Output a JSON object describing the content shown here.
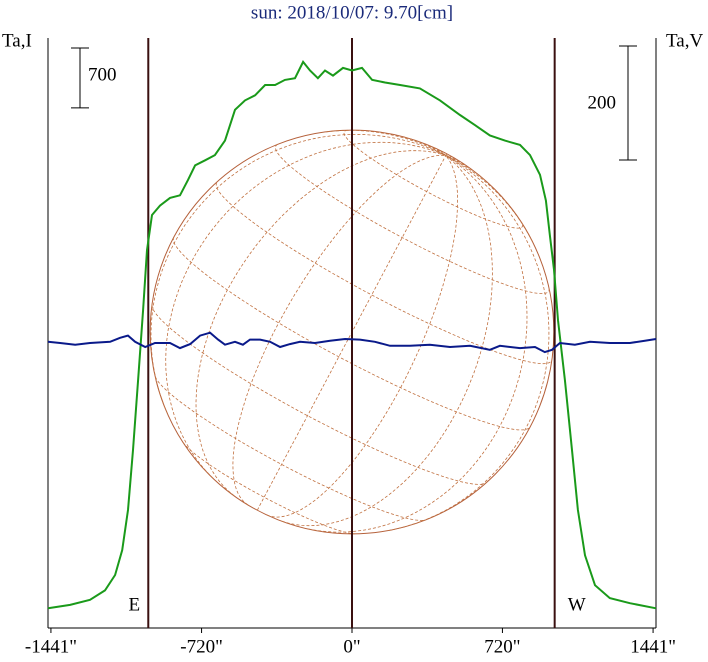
{
  "chart_data": {
    "type": "line",
    "title": "sun: 2018/10/07: 9.70[cm]",
    "ylabel": "Ta,I",
    "y2label": "Ta,V",
    "xlim": [
      -1455,
      1455
    ],
    "xticks": [
      {
        "value": -1441,
        "label": "-1441\""
      },
      {
        "value": -720,
        "label": "-720\""
      },
      {
        "value": 0,
        "label": "0\""
      },
      {
        "value": 720,
        "label": "720\""
      },
      {
        "value": 1441,
        "label": "1441\""
      }
    ],
    "ylim": [
      0,
      6900
    ],
    "y2lim": [
      -502,
      533
    ],
    "disk_radius": 966,
    "vlines": [
      {
        "x": -975,
        "label": "E"
      },
      {
        "x": 0
      },
      {
        "x": 970,
        "label": "W"
      }
    ],
    "scale_bars": [
      {
        "value": 700
      },
      {
        "value": 200,
        "axis": "y2"
      }
    ],
    "series": [
      {
        "name": "I",
        "color": "#1a9a1a",
        "x": [
          -1455,
          -1349,
          -1254,
          -1182,
          -1134,
          -1100,
          -1072,
          -1048,
          -1024,
          -1000,
          -981,
          -957,
          -919,
          -871,
          -823,
          -785,
          -751,
          -703,
          -656,
          -608,
          -560,
          -512,
          -464,
          -416,
          -368,
          -321,
          -273,
          -234,
          -201,
          -163,
          -129,
          -91,
          -43,
          0,
          48,
          96,
          158,
          230,
          325,
          421,
          517,
          589,
          660,
          732,
          804,
          852,
          900,
          928,
          947,
          967,
          986,
          1019,
          1053,
          1081,
          1115,
          1163,
          1234,
          1330,
          1455
        ],
        "values": [
          230,
          270,
          330,
          440,
          620,
          910,
          1380,
          2080,
          2900,
          3720,
          4420,
          4830,
          4940,
          5030,
          5060,
          5240,
          5410,
          5470,
          5530,
          5700,
          6060,
          6170,
          6230,
          6350,
          6350,
          6410,
          6430,
          6620,
          6520,
          6430,
          6520,
          6460,
          6550,
          6520,
          6550,
          6410,
          6380,
          6350,
          6310,
          6170,
          6000,
          5880,
          5760,
          5700,
          5650,
          5530,
          5300,
          5000,
          4590,
          4190,
          3600,
          2900,
          2080,
          1380,
          850,
          500,
          350,
          290,
          230
        ]
      },
      {
        "name": "V",
        "color": "#0a1a8a",
        "axis": "y2",
        "x": [
          -1455,
          -1397,
          -1325,
          -1254,
          -1158,
          -1110,
          -1072,
          -1038,
          -990,
          -943,
          -871,
          -823,
          -775,
          -727,
          -679,
          -641,
          -608,
          -560,
          -522,
          -488,
          -440,
          -392,
          -344,
          -297,
          -249,
          -177,
          -105,
          -33,
          38,
          110,
          182,
          278,
          373,
          469,
          565,
          660,
          708,
          804,
          876,
          923,
          957,
          995,
          1067,
          1139,
          1234,
          1330,
          1402,
          1455
        ],
        "values": [
          0,
          -2,
          -5,
          -2,
          0,
          7,
          11,
          0,
          -9,
          -2,
          -2,
          -11,
          -4,
          11,
          16,
          4,
          -5,
          0,
          -5,
          4,
          4,
          0,
          -9,
          -4,
          0,
          -2,
          2,
          5,
          4,
          0,
          -7,
          -7,
          -5,
          -9,
          -7,
          -14,
          -7,
          -11,
          -9,
          -18,
          -14,
          -2,
          -5,
          0,
          -2,
          -2,
          2,
          5
        ]
      }
    ]
  }
}
